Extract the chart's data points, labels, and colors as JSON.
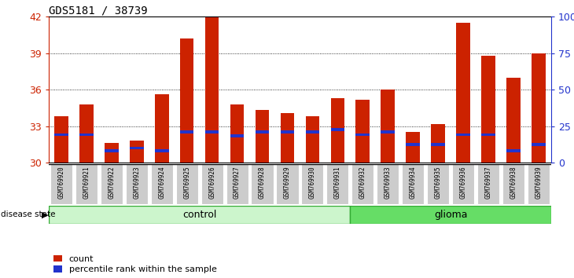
{
  "title": "GDS5181 / 38739",
  "samples": [
    "GSM769920",
    "GSM769921",
    "GSM769922",
    "GSM769923",
    "GSM769924",
    "GSM769925",
    "GSM769926",
    "GSM769927",
    "GSM769928",
    "GSM769929",
    "GSM769930",
    "GSM769931",
    "GSM769932",
    "GSM769933",
    "GSM769934",
    "GSM769935",
    "GSM769936",
    "GSM769937",
    "GSM769938",
    "GSM769939"
  ],
  "count_values": [
    33.8,
    34.8,
    31.6,
    31.8,
    35.6,
    40.2,
    42.0,
    34.8,
    34.3,
    34.1,
    33.8,
    35.3,
    35.2,
    36.0,
    32.5,
    33.2,
    41.5,
    38.8,
    37.0,
    39.0
  ],
  "percentile_values": [
    32.3,
    32.3,
    31.0,
    31.2,
    31.0,
    32.5,
    32.5,
    32.2,
    32.5,
    32.5,
    32.5,
    32.7,
    32.3,
    32.5,
    31.5,
    31.5,
    32.3,
    32.3,
    31.0,
    31.5
  ],
  "group_labels": [
    "control",
    "glioma"
  ],
  "group_sizes": [
    12,
    8
  ],
  "control_color": "#ccf5cc",
  "glioma_color": "#66dd66",
  "ylim": [
    30,
    42
  ],
  "yticks": [
    30,
    33,
    36,
    39,
    42
  ],
  "y2ticks": [
    0,
    25,
    50,
    75,
    100
  ],
  "y2tick_labels": [
    "0",
    "25",
    "50",
    "75",
    "100%"
  ],
  "bar_color": "#cc2200",
  "percentile_color": "#2233cc",
  "bar_width": 0.55,
  "cell_bg_color": "#cccccc",
  "legend_count_label": "count",
  "legend_pct_label": "percentile rank within the sample",
  "left_color": "#cc2200",
  "right_color": "#2233cc"
}
